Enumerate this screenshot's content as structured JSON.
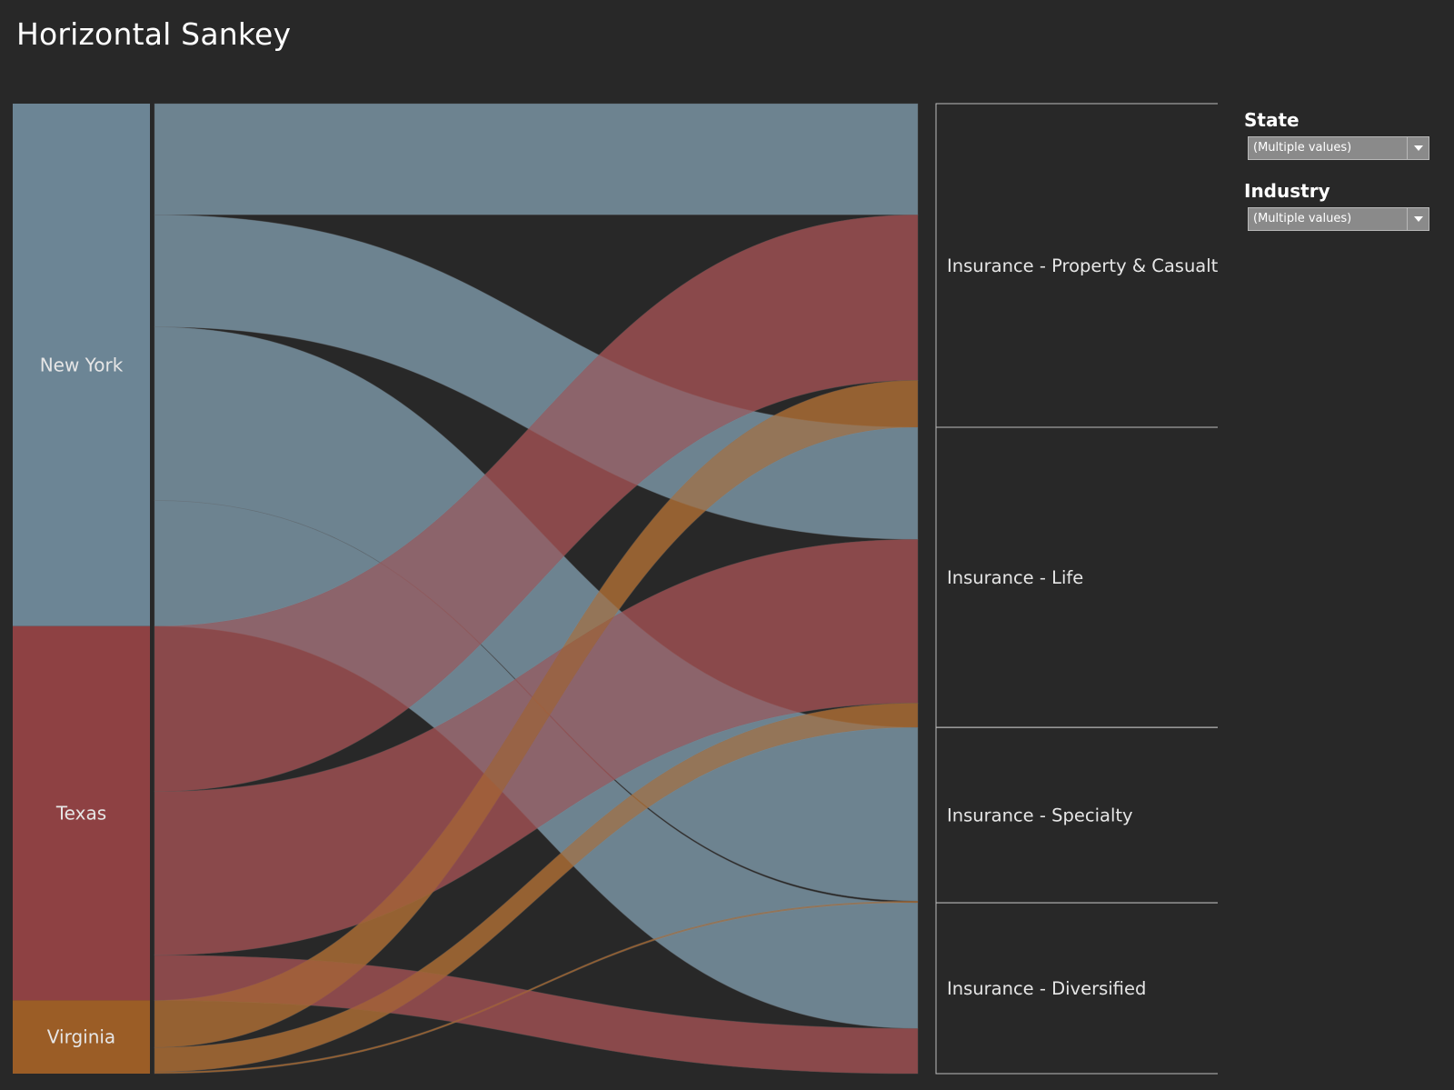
{
  "title": "Horizontal Sankey",
  "filters": [
    {
      "label": "State",
      "value": "(Multiple values)"
    },
    {
      "label": "Industry",
      "value": "(Multiple values)"
    }
  ],
  "colors": {
    "background": "#282828",
    "New York": "#6c8595",
    "Texas": "#8e4143",
    "Virginia": "#9b5d26",
    "border": "#bdbdbd"
  },
  "chart_data": {
    "type": "sankey",
    "title": "Horizontal Sankey",
    "sources": [
      "New York",
      "Texas",
      "Virginia"
    ],
    "targets": [
      "Insurance - Property & Casualty",
      "Insurance - Life",
      "Insurance - Specialty",
      "Insurance - Diversified"
    ],
    "flows": [
      {
        "source": "New York",
        "target": "Insurance - Property & Casualty",
        "value": 12.3
      },
      {
        "source": "New York",
        "target": "Insurance - Life",
        "value": 12.4
      },
      {
        "source": "New York",
        "target": "Insurance - Specialty",
        "value": 19.2
      },
      {
        "source": "New York",
        "target": "Insurance - Diversified",
        "value": 13.9
      },
      {
        "source": "Texas",
        "target": "Insurance - Property & Casualty",
        "value": 18.3
      },
      {
        "source": "Texas",
        "target": "Insurance - Life",
        "value": 18.1
      },
      {
        "source": "Texas",
        "target": "Insurance - Diversified",
        "value": 5.0
      },
      {
        "source": "Virginia",
        "target": "Insurance - Property & Casualty",
        "value": 5.2
      },
      {
        "source": "Virginia",
        "target": "Insurance - Life",
        "value": 2.7
      },
      {
        "source": "Virginia",
        "target": "Insurance - Specialty",
        "value": 0.2
      }
    ]
  }
}
